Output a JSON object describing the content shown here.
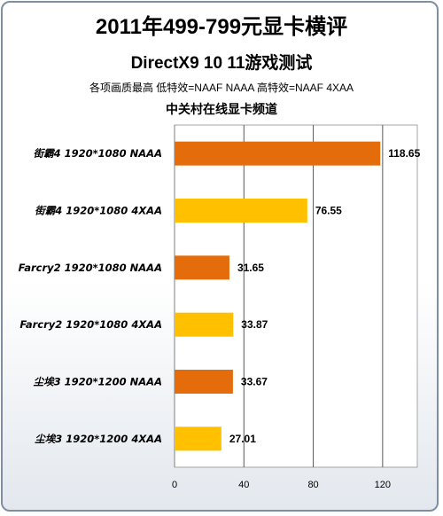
{
  "chart_data": {
    "type": "bar",
    "orientation": "horizontal",
    "title": "2011年499-799元显卡横评",
    "subtitle": "DirectX9 10 11游戏测试",
    "note": "各项画质最高 低特效=NAAF NAAA 高特效=NAAF 4XAA",
    "source": "中关村在线显卡频道",
    "categories": [
      "街霸4 1920*1080 NAAA",
      "街霸4 1920*1080 4XAA",
      "Farcry2 1920*1080 NAAA",
      "Farcry2 1920*1080 4XAA",
      "尘埃3 1920*1200 NAAA",
      "尘埃3 1920*1200 4XAA"
    ],
    "values": [
      118.65,
      76.55,
      31.65,
      33.87,
      33.67,
      27.01
    ],
    "value_labels": [
      "118.65",
      "76.55",
      "31.65",
      "33.87",
      "33.67",
      "27.01"
    ],
    "bar_colors": [
      "#e46c0a",
      "#ffc000",
      "#e46c0a",
      "#ffc000",
      "#e46c0a",
      "#ffc000"
    ],
    "xlim": [
      0,
      140
    ],
    "xticks": [
      0,
      40,
      80,
      120
    ],
    "grid": true,
    "legend": "none"
  }
}
